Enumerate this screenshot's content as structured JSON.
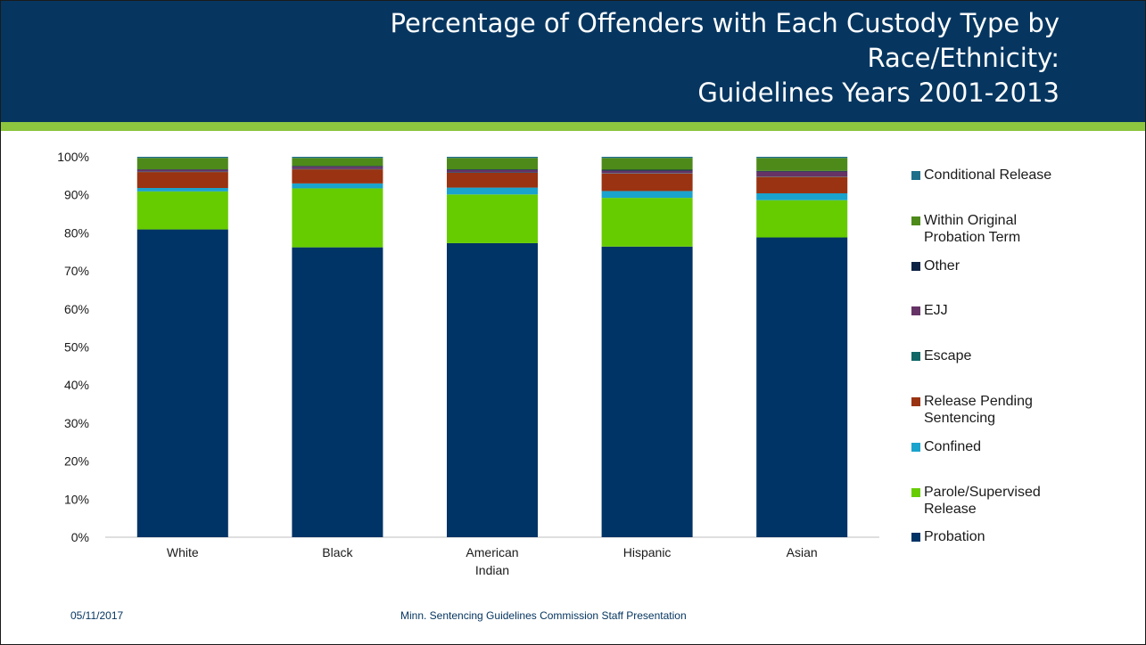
{
  "header": {
    "title_lines": [
      "Percentage of Offenders with Each Custody Type by",
      "Race/Ethnicity:",
      "Guidelines Years 2001-2013"
    ]
  },
  "colors": {
    "header_bg": "#063660",
    "accent_bar": "#8dc63f"
  },
  "chart_data": {
    "type": "bar",
    "stacked": true,
    "title": "",
    "xlabel": "",
    "ylabel": "",
    "ylim": [
      0,
      100
    ],
    "yticks": [
      "0%",
      "10%",
      "20%",
      "30%",
      "40%",
      "50%",
      "60%",
      "70%",
      "80%",
      "90%",
      "100%"
    ],
    "categories": [
      "White",
      "Black",
      "American Indian",
      "Hispanic",
      "Asian"
    ],
    "series": [
      {
        "name": "Probation",
        "color": "#003366",
        "values": [
          80.9,
          76.2,
          77.3,
          76.4,
          78.8
        ]
      },
      {
        "name": "Parole/Supervised Release",
        "color": "#66cc00",
        "values": [
          10.0,
          15.5,
          12.8,
          12.8,
          9.8
        ]
      },
      {
        "name": "Confined",
        "color": "#1aa3cc",
        "values": [
          0.9,
          1.3,
          1.8,
          1.8,
          1.8
        ]
      },
      {
        "name": "Release Pending Sentencing",
        "color": "#993311",
        "values": [
          4.2,
          3.7,
          3.9,
          4.6,
          4.3
        ]
      },
      {
        "name": "Escape",
        "color": "#116666",
        "values": [
          0.1,
          0.1,
          0.1,
          0.1,
          0.1
        ]
      },
      {
        "name": "EJJ",
        "color": "#663366",
        "values": [
          0.5,
          0.6,
          0.6,
          0.6,
          1.3
        ]
      },
      {
        "name": "Other",
        "color": "#0d2244",
        "values": [
          0.1,
          0.2,
          0.2,
          0.3,
          0.2
        ]
      },
      {
        "name": "Within Original Probation Term",
        "color": "#4d8a1a",
        "values": [
          3.0,
          2.1,
          3.0,
          3.1,
          3.4
        ]
      },
      {
        "name": "Conditional Release",
        "color": "#1f6f8b",
        "values": [
          0.3,
          0.3,
          0.3,
          0.3,
          0.3
        ]
      }
    ],
    "legend_order": [
      "Conditional Release",
      "Within Original Probation Term",
      "Other",
      "EJJ",
      "Escape",
      "Release Pending Sentencing",
      "Confined",
      "Parole/Supervised Release",
      "Probation"
    ],
    "legend_display": [
      "Conditional Release",
      "Within Original\nProbation Term",
      "Other",
      "EJJ",
      "Escape",
      "Release Pending\nSentencing",
      "Confined",
      "Parole/Supervised\nRelease",
      "Probation"
    ],
    "category_display": [
      "White",
      "Black",
      "American\nIndian",
      "Hispanic",
      "Asian"
    ],
    "legend_position": "right",
    "grid": false
  },
  "footer": {
    "date": "05/11/2017",
    "text": "Minn. Sentencing Guidelines Commission Staff Presentation"
  }
}
